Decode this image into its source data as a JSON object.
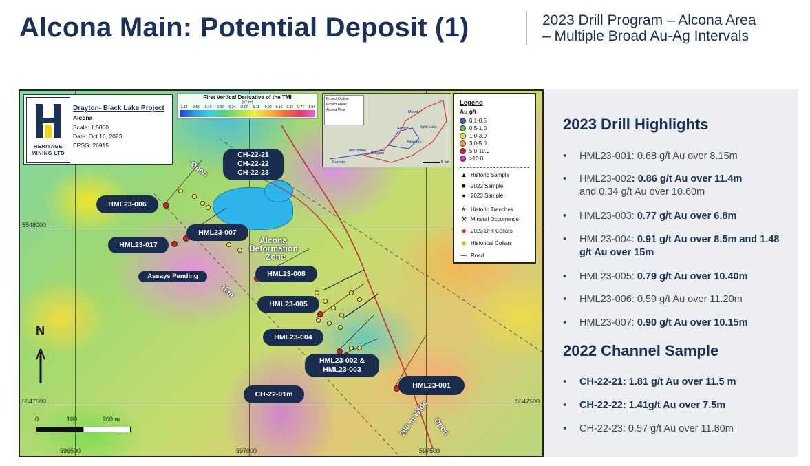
{
  "header": {
    "title": "Alcona Main: Potential Deposit (1)",
    "subtitle_line1": "2023 Drill Program – Alcona Area",
    "subtitle_line2": "– Multiple Broad Au-Ag Intervals"
  },
  "map": {
    "info": {
      "logo_line1": "HERITAGE",
      "logo_line2": "MINING LTD",
      "project": "Drayton- Black Lake Project",
      "area": "Alcona",
      "scale": "Scale: 1:5000",
      "date": "Date: Oct 16, 2023",
      "epsg": "EPSG: 26915"
    },
    "tmi": {
      "title": "First Vertical Derivative of the TMI",
      "units": "(nT/m)",
      "ticks": [
        "-2.12",
        "-0.65",
        "-0.43",
        "-0.32",
        "-0.24",
        "-0.17",
        "-0.11",
        "-0.03",
        "0.10",
        "0.32",
        "0.77",
        "1.94"
      ]
    },
    "inset": {
      "legend": [
        "Project Outline",
        "Project Areas",
        "Alcona Mine"
      ],
      "places": [
        "Moretti",
        "Split Lake",
        "Alcona",
        "Aikenore",
        "McCombe",
        "Drayton",
        "Eurysis"
      ],
      "scale": "5 km"
    },
    "legend": {
      "title": "Legend",
      "subtitle": "Au g/t",
      "grades": [
        {
          "label": "0.1-0.5",
          "color": "#3b55c8"
        },
        {
          "label": "0.5-1.0",
          "color": "#5cbf4a"
        },
        {
          "label": "1.0-3.0",
          "color": "#f2ea3a"
        },
        {
          "label": "3.0-5.0",
          "color": "#f2a030"
        },
        {
          "label": "5.0-10.0",
          "color": "#e02020"
        },
        {
          "label": ">10.0",
          "color": "#d030c8"
        }
      ],
      "symbols": [
        {
          "sym": "▲",
          "label": "Historic Sample"
        },
        {
          "sym": "■",
          "label": "2022 Sample"
        },
        {
          "sym": "●",
          "label": "2023 Sample"
        },
        {
          "sym": "#",
          "label": "Historic Trenches"
        },
        {
          "sym": "⚒",
          "label": "Mineral Occurrence"
        },
        {
          "sym": "◉",
          "label": "2023 Drill Collars"
        },
        {
          "sym": "◉",
          "label": "Historical Collars"
        },
        {
          "sym": "—",
          "label": "Road"
        }
      ]
    },
    "grid": {
      "n1": "5548000",
      "n2": "5547500",
      "e1": "596500",
      "e2": "597000",
      "e3": "597500"
    },
    "callouts": {
      "ch21": "CH-22-21",
      "ch22": "CH-22-22",
      "ch23": "CH-22-23",
      "h006": "HML23-006",
      "h007": "HML23-007",
      "h017": "HML23-017",
      "h008": "HML23-008",
      "h005": "HML23-005",
      "h004": "HML23-004",
      "h002": "HML23-002 &",
      "h003": "HML23-003",
      "h001": "HML23-001",
      "ch01": "CH-22-01m",
      "assays": "Assays Pending"
    },
    "notes": {
      "open1": "Open",
      "open2": "Open",
      "km": "1km",
      "wide": "200 m Wide",
      "zone1": "Alcona",
      "zone2": "Deformation",
      "zone3": "Zone",
      "north": "N",
      "sb0": "0",
      "sb100": "100",
      "sb200": "200 m"
    }
  },
  "panel": {
    "h1": "2023 Drill Highlights",
    "drill": [
      {
        "id": "HML23-001",
        "plain": "HML23-001: 0.68 g/t Au over 8.15m",
        "bold": ""
      },
      {
        "id": "HML23-002",
        "plain": "HML23-002",
        "bold": ": 0.86 g/t Au over 11.4m",
        "extra": "and 0.34 g/t Au over 10.60m"
      },
      {
        "id": "HML23-003",
        "plain": "HML23-003: ",
        "bold": "0.77 g/t Au over 6.8m"
      },
      {
        "id": "HML23-004",
        "plain": "HML23-004: ",
        "bold": "0.91 g/t Au over 8.5m and 1.48 g/t Au over 15m"
      },
      {
        "id": "HML23-005",
        "plain": "HML23-005: ",
        "bold": "0.79 g/t Au over 10.40m"
      },
      {
        "id": "HML23-006",
        "plain": "HML23-006: 0.59 g/t Au over 11.20m",
        "bold": ""
      },
      {
        "id": "HML23-007",
        "plain": "HML23-007: ",
        "bold": "0.90 g/t Au over 10.15m"
      }
    ],
    "h2": "2022 Channel Sample",
    "channel": [
      {
        "text": "CH-22-21: 1.81 g/t Au over  11.5 m",
        "bold": true
      },
      {
        "text": "CH-22-22: 1.41g/t Au over 7.5m",
        "bold": true
      },
      {
        "text": "CH-22-23: 0.57 g/t Au over 11.80m",
        "bold": false
      }
    ],
    "bullet": "•"
  }
}
